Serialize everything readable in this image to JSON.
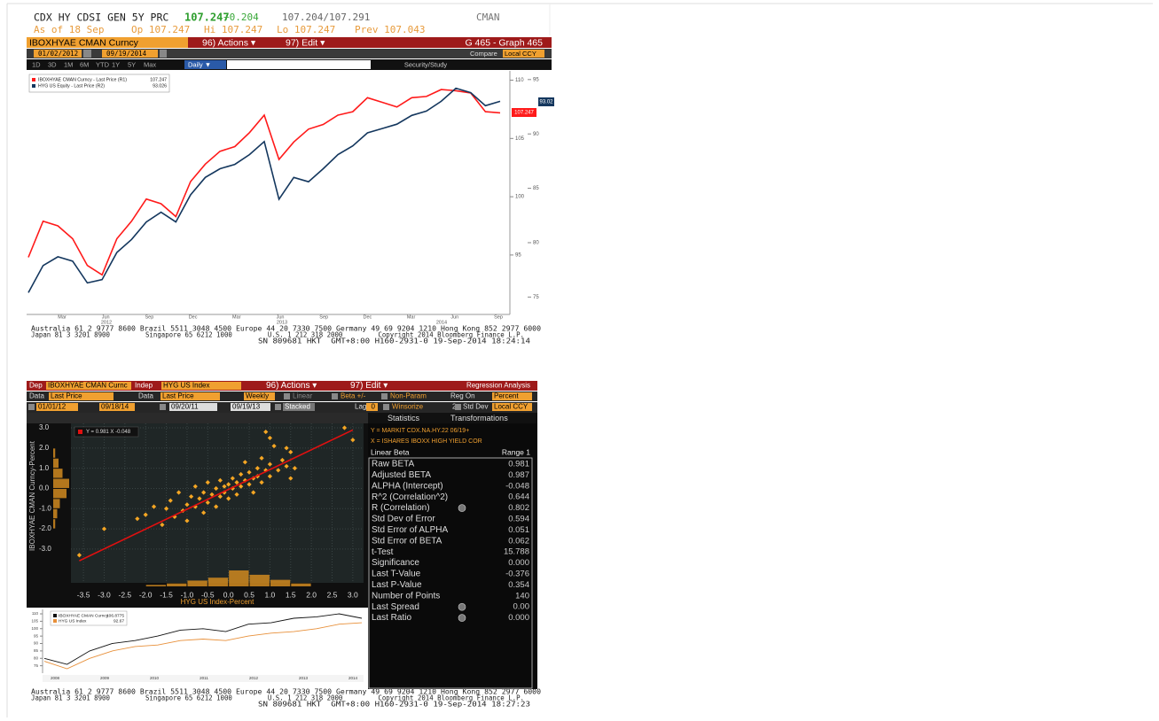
{
  "header": {
    "ticker": "CDX HY CDSI GEN 5Y PRC",
    "last": "107.247",
    "change": "+0.204",
    "bid_ask": "107.204/107.291",
    "source": "CMAN",
    "as_of": "As of 18 Sep",
    "open": "Op 107.247",
    "high": "Hi 107.247",
    "low": "Lo 107.247",
    "prev": "Prev 107.043"
  },
  "graph_toolbar": {
    "security": "IBOXHYAE CMAN Curncy",
    "actions": "96) Actions ▾",
    "edit": "97) Edit ▾",
    "graph": "G 465 - Graph 465",
    "start": "01/02/2012",
    "end": "09/19/2014",
    "compare": "Compare",
    "currency": "Local CCY",
    "periods": [
      "1D",
      "3D",
      "1M",
      "6M",
      "YTD",
      "1Y",
      "5Y",
      "Max"
    ],
    "frequency": "Daily ▼",
    "study": "Security/Study"
  },
  "price_chart": {
    "type": "line",
    "series": [
      {
        "name": "IBOXHYAE CMAN Curncy - Last Price (R1)",
        "legend_value": "107.247",
        "last_label": "107.247",
        "color": "#ff1a1a",
        "axis": "y",
        "values": [
          94.8,
          97.9,
          97.5,
          96.4,
          94.1,
          93.3,
          96.4,
          97.9,
          99.8,
          99.4,
          98.3,
          101.3,
          102.8,
          103.9,
          104.3,
          105.5,
          107.0,
          103.2,
          104.7,
          105.8,
          106.2,
          107.0,
          107.3,
          108.5,
          108.1,
          107.7,
          108.5,
          108.6,
          109.2,
          109.1,
          108.9,
          107.3,
          107.2
        ]
      },
      {
        "name": "HYG US Equity - Last Price (R2)",
        "legend_value": "93.026",
        "last_label": "93.02",
        "color": "#14375e",
        "axis": "y2",
        "values": [
          75.4,
          77.9,
          78.7,
          78.3,
          76.3,
          76.6,
          79.1,
          80.3,
          81.9,
          82.8,
          81.9,
          84.4,
          86.0,
          86.8,
          87.2,
          88.1,
          89.3,
          84.0,
          86.0,
          85.6,
          86.8,
          88.1,
          88.9,
          90.1,
          90.5,
          90.9,
          91.7,
          92.1,
          93.0,
          94.2,
          93.8,
          92.6,
          93.0
        ]
      }
    ],
    "ylim": [
      89.9,
      110.8
    ],
    "yticks": [
      95,
      100,
      105,
      110
    ],
    "y2lim": [
      73.4,
      95.8
    ],
    "y2ticks": [
      75,
      80,
      85,
      90,
      95
    ],
    "xticks": [
      "Mar",
      "Jun",
      "Sep",
      "Dec",
      "Mar",
      "Jun",
      "Sep",
      "Dec",
      "Mar",
      "Jun",
      "Sep"
    ],
    "years": [
      "2012",
      "2013",
      "2014"
    ]
  },
  "footer_top": {
    "line1": "Australia 61 2 9777 8600 Brazil 5511 3048 4500 Europe 44 20 7330 7500 Germany 49 69 9204 1210 Hong Kong 852 2977 6000",
    "line2": "Japan 81 3 3201 8900         Singapore 65 6212 1000         U.S. 1 212 318 2000         Copyright 2014 Bloomberg Finance L.P.",
    "line3": "SN 809681 HKT  GMT+8:00 H160-2931-0 19-Sep-2014 18:24:14"
  },
  "regression_toolbar": {
    "dep_label": "Dep",
    "dep": "IBOXHYAE CMAN Curnc",
    "indep_label": "Indep",
    "indep": "HYG US Index",
    "actions": "96) Actions ▾",
    "edit": "97) Edit ▾",
    "title": "Regression Analysis",
    "data_label": "Data",
    "dep_field": "Last Price",
    "data_label2": "Data",
    "indep_field": "Last Price",
    "frequency": "Weekly",
    "linear": "Linear",
    "beta": "Beta +/-",
    "non_param": "Non-Param",
    "reg_on": "Reg On",
    "reg_mode": "Percent",
    "dep_start": "01/01/12",
    "dep_end": "09/18/14",
    "indep_start": "09/20/11",
    "indep_end": "09/19/13",
    "stacked": "Stacked",
    "lag": "Lag",
    "lag_value": "0",
    "winsorize": "Winsorize",
    "std_value": "2",
    "std_dev": "Std Dev",
    "currency": "Local CCY"
  },
  "scatter": {
    "type": "scatter",
    "equation": "Y = 0.981 X -0.048",
    "y_label": "IBOXHYAE CMAN Curncy-Percent",
    "x_label": "HYG US Index-Percent",
    "x": [
      -3.6,
      -3.0,
      -2.2,
      -2.0,
      -1.8,
      -1.6,
      -1.5,
      -1.4,
      -1.3,
      -1.2,
      -1.1,
      -1.0,
      -1.0,
      -0.9,
      -0.8,
      -0.8,
      -0.7,
      -0.6,
      -0.6,
      -0.5,
      -0.5,
      -0.4,
      -0.3,
      -0.3,
      -0.2,
      -0.2,
      -0.1,
      -0.1,
      0.0,
      0.0,
      0.1,
      0.1,
      0.2,
      0.2,
      0.3,
      0.3,
      0.4,
      0.4,
      0.5,
      0.5,
      0.6,
      0.6,
      0.7,
      0.7,
      0.8,
      0.8,
      0.9,
      1.0,
      1.0,
      1.1,
      1.2,
      1.3,
      1.4,
      1.5,
      1.6,
      1.4,
      1.5,
      2.8,
      3.0,
      0.9,
      1.0
    ],
    "y": [
      -3.3,
      -2.0,
      -1.5,
      -1.3,
      -0.9,
      -1.8,
      -1.0,
      -0.6,
      -1.4,
      -0.2,
      -1.1,
      -0.8,
      -1.6,
      -0.4,
      -0.9,
      0.1,
      -0.5,
      -1.2,
      -0.2,
      0.3,
      -0.7,
      -0.3,
      0.0,
      -0.9,
      0.4,
      -0.4,
      0.1,
      -0.2,
      0.2,
      -0.5,
      0.5,
      0.0,
      0.3,
      -0.3,
      0.7,
      0.1,
      0.4,
      1.3,
      0.2,
      0.8,
      0.5,
      -0.2,
      1.0,
      0.6,
      0.3,
      1.5,
      0.9,
      0.6,
      1.2,
      2.1,
      0.9,
      1.4,
      1.1,
      0.5,
      1.0,
      2.0,
      1.8,
      3.0,
      2.4,
      2.8,
      2.5
    ],
    "xlim": [
      -4.23,
      3.26
    ],
    "ylim": [
      -4.32,
      3.22
    ],
    "xticks": [
      -3.5,
      {
        "value": -3,
        "label": "-3.0"
      },
      -2.5,
      {
        "value": -2,
        "label": "-2.0"
      },
      -1.5,
      {
        "value": -1,
        "label": "-1.0"
      },
      -0.5,
      {
        "value": 0,
        "label": "0.0"
      },
      0.5,
      {
        "value": 1,
        "label": "1.0"
      },
      1.5,
      {
        "value": 2,
        "label": "2.0"
      },
      2.5,
      {
        "value": 3,
        "label": "3.0"
      }
    ],
    "yticks": [
      {
        "value": 3,
        "label": "3.0"
      },
      {
        "value": 2,
        "label": "2.0"
      },
      {
        "value": 1,
        "label": "1.0"
      },
      {
        "value": 0,
        "label": "0.0"
      },
      {
        "value": -1,
        "label": "-1.0"
      },
      {
        "value": -2,
        "label": "-2.0"
      },
      {
        "value": -3,
        "label": "-3.0"
      }
    ],
    "x_hist_bins": [
      -2,
      -1.5,
      -1,
      -0.5,
      0,
      0.5,
      1,
      1.5,
      2
    ],
    "x_hist_counts": [
      2,
      4,
      8,
      12,
      22,
      16,
      9,
      4
    ],
    "y_hist_bins": [
      -2,
      -1.5,
      -1,
      -0.5,
      0,
      0.5,
      1,
      1.5,
      2
    ],
    "y_hist_counts": [
      3,
      6,
      10,
      20,
      24,
      14,
      8,
      3
    ]
  },
  "statistics": {
    "tabs": [
      "Statistics",
      "Transformations"
    ],
    "y_desc": "Y = MARKIT CDX.NA.HY.22 06/19+",
    "x_desc": "X = ISHARES IBOXX HIGH YIELD COR",
    "header": [
      "Linear Beta",
      "Range 1"
    ],
    "rows": [
      [
        "Raw BETA",
        "0.981"
      ],
      [
        "Adjusted BETA",
        "0.987"
      ],
      [
        "ALPHA (Intercept)",
        "-0.048"
      ],
      [
        "R^2 (Correlation^2)",
        "0.644"
      ],
      [
        "R (Correlation)",
        "0.802"
      ],
      [
        "Std Dev of Error",
        "0.594"
      ],
      [
        "Std Error of ALPHA",
        "0.051"
      ],
      [
        "Std Error of BETA",
        "0.062"
      ],
      [
        "t-Test",
        "15.788"
      ],
      [
        "Significance",
        "0.000"
      ],
      [
        "Last T-Value",
        "-0.376"
      ],
      [
        "Last P-Value",
        "0.354"
      ],
      [
        "Number of Points",
        "140"
      ],
      [
        "Last Spread",
        "0.00"
      ],
      [
        "Last Ratio",
        "0.000"
      ]
    ]
  },
  "history_chart": {
    "type": "line",
    "series": [
      {
        "name": "IBOXHYAE CMAN Curncy",
        "legend_value": "106.8775",
        "color": "#111111",
        "values": [
          80,
          76,
          85,
          90,
          92,
          95,
          99,
          100,
          98,
          103,
          104,
          107,
          108,
          110,
          107
        ]
      },
      {
        "name": "HYG US Index",
        "legend_value": "92.67",
        "color": "#e8903a",
        "values": [
          78,
          73,
          80,
          85,
          88,
          89,
          92,
          93,
          92,
          95,
          97,
          98,
          100,
          103,
          104
        ]
      }
    ],
    "ylim": [
      70,
      113
    ],
    "yticks": [
      75,
      80,
      85,
      90,
      95,
      100,
      105,
      110
    ],
    "xticks": [
      "2008",
      "2009",
      "2010",
      "2011",
      "2012",
      "2013",
      "2014"
    ]
  },
  "footer_bottom": {
    "line1": "Australia 61 2 9777 8600 Brazil 5511 3048 4500 Europe 44 20 7330 7500 Germany 49 69 9204 1210 Hong Kong 852 2977 6000",
    "line2": "Japan 81 3 3201 8900         Singapore 65 6212 1000         U.S. 1 212 318 2000         Copyright 2014 Bloomberg Finance L.P.",
    "line3": "SN 809681 HKT  GMT+8:00 H160-2931-0 19-Sep-2014 18:27:23"
  }
}
